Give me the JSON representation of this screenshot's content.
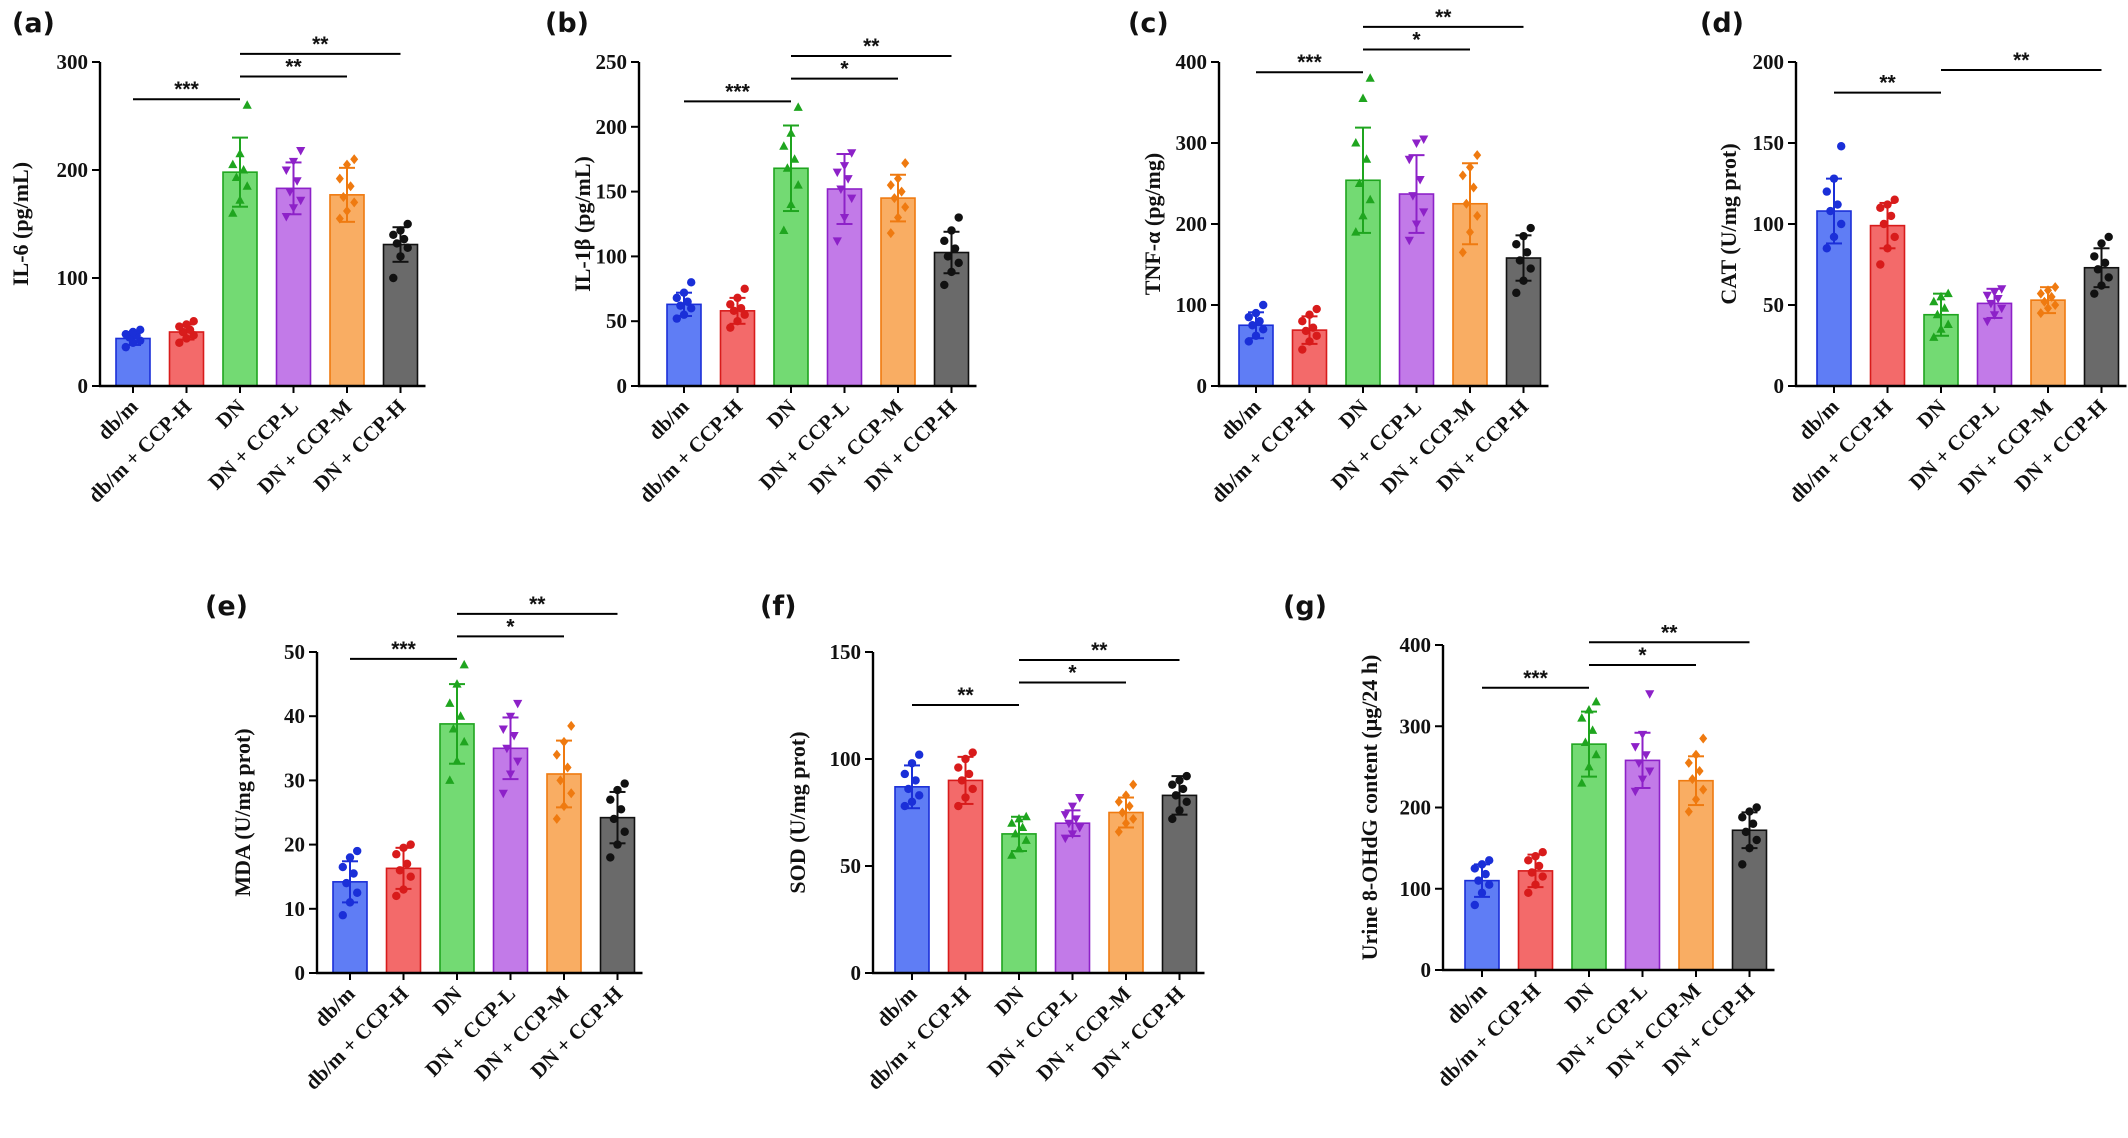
{
  "figure": {
    "colors": {
      "fills": [
        "#5f7df5",
        "#f36a6a",
        "#73da73",
        "#c27ae8",
        "#f9ad63",
        "#6a6a6a"
      ],
      "strokes": [
        "#1a2fd8",
        "#d81b1b",
        "#1fa51f",
        "#8d21c8",
        "#ef7a10",
        "#111111"
      ],
      "axis": "#000000"
    }
  },
  "chart_data": [
    {
      "id": "a",
      "panel_label": "(a)",
      "type": "bar",
      "ylabel": "IL-6 (pg/mL)",
      "ylim": [
        0,
        300
      ],
      "yticks": [
        0,
        100,
        200,
        300
      ],
      "categories": [
        "db/m",
        "db/m + CCP-H",
        "DN",
        "DN + CCP-L",
        "DN + CCP-M",
        "DN + CCP-H"
      ],
      "values": [
        44,
        50,
        198,
        183,
        177,
        131
      ],
      "errors": [
        6,
        7,
        32,
        24,
        25,
        16
      ],
      "points": [
        [
          36,
          40,
          42,
          45,
          47,
          48,
          50,
          52
        ],
        [
          40,
          44,
          47,
          50,
          52,
          55,
          57,
          60
        ],
        [
          160,
          172,
          185,
          193,
          200,
          205,
          215,
          260
        ],
        [
          157,
          165,
          172,
          180,
          190,
          200,
          208,
          218
        ],
        [
          155,
          162,
          170,
          175,
          185,
          192,
          205,
          210
        ],
        [
          100,
          120,
          128,
          132,
          136,
          140,
          144,
          150
        ]
      ],
      "markers": [
        "circle",
        "circle",
        "triangle-up",
        "triangle-down",
        "diamond",
        "circle"
      ],
      "significance": [
        {
          "from": 0,
          "to": 2,
          "label": "***"
        },
        {
          "from": 2,
          "to": 4,
          "label": "**"
        },
        {
          "from": 2,
          "to": 5,
          "label": "**"
        }
      ]
    },
    {
      "id": "b",
      "panel_label": "(b)",
      "type": "bar",
      "ylabel": "IL-1β (pg/mL)",
      "ylim": [
        0,
        250
      ],
      "yticks": [
        0,
        50,
        100,
        150,
        200,
        250
      ],
      "categories": [
        "db/m",
        "db/m + CCP-H",
        "DN",
        "DN + CCP-L",
        "DN + CCP-M",
        "DN + CCP-H"
      ],
      "values": [
        63,
        58,
        168,
        152,
        145,
        103
      ],
      "errors": [
        9,
        10,
        33,
        27,
        18,
        16
      ],
      "points": [
        [
          52,
          55,
          60,
          62,
          65,
          68,
          72,
          80
        ],
        [
          45,
          50,
          55,
          58,
          60,
          63,
          68,
          75
        ],
        [
          120,
          140,
          155,
          168,
          175,
          185,
          195,
          215
        ],
        [
          112,
          130,
          145,
          152,
          160,
          165,
          170,
          180
        ],
        [
          118,
          130,
          138,
          145,
          150,
          155,
          160,
          172
        ],
        [
          78,
          88,
          95,
          100,
          106,
          112,
          120,
          130
        ]
      ],
      "markers": [
        "circle",
        "circle",
        "triangle-up",
        "triangle-down",
        "diamond",
        "circle"
      ],
      "significance": [
        {
          "from": 0,
          "to": 2,
          "label": "***"
        },
        {
          "from": 2,
          "to": 4,
          "label": "*"
        },
        {
          "from": 2,
          "to": 5,
          "label": "**"
        }
      ]
    },
    {
      "id": "c",
      "panel_label": "(c)",
      "type": "bar",
      "ylabel": "TNF-α (pg/mg)",
      "ylim": [
        0,
        400
      ],
      "yticks": [
        0,
        100,
        200,
        300,
        400
      ],
      "categories": [
        "db/m",
        "db/m + CCP-H",
        "DN",
        "DN + CCP-L",
        "DN + CCP-M",
        "DN + CCP-H"
      ],
      "values": [
        75,
        69,
        254,
        237,
        225,
        158
      ],
      "errors": [
        16,
        17,
        65,
        48,
        50,
        28
      ],
      "points": [
        [
          55,
          62,
          70,
          75,
          80,
          85,
          90,
          100
        ],
        [
          45,
          55,
          62,
          68,
          72,
          80,
          88,
          95
        ],
        [
          190,
          210,
          230,
          250,
          280,
          300,
          355,
          380
        ],
        [
          180,
          200,
          215,
          235,
          255,
          280,
          300,
          305
        ],
        [
          165,
          190,
          210,
          225,
          245,
          260,
          270,
          285
        ],
        [
          115,
          130,
          145,
          155,
          165,
          175,
          185,
          195
        ]
      ],
      "markers": [
        "circle",
        "circle",
        "triangle-up",
        "triangle-down",
        "diamond",
        "circle"
      ],
      "significance": [
        {
          "from": 0,
          "to": 2,
          "label": "***"
        },
        {
          "from": 2,
          "to": 4,
          "label": "*"
        },
        {
          "from": 2,
          "to": 5,
          "label": "**"
        }
      ]
    },
    {
      "id": "d",
      "panel_label": "(d)",
      "type": "bar",
      "ylabel": "CAT (U/mg prot)",
      "ylim": [
        0,
        200
      ],
      "yticks": [
        0,
        50,
        100,
        150,
        200
      ],
      "categories": [
        "db/m",
        "db/m + CCP-H",
        "DN",
        "DN + CCP-L",
        "DN + CCP-M",
        "DN + CCP-H"
      ],
      "values": [
        108,
        99,
        44,
        51,
        53,
        73
      ],
      "errors": [
        20,
        14,
        13,
        9,
        8,
        12
      ],
      "points": [
        [
          85,
          92,
          100,
          108,
          112,
          120,
          128,
          148
        ],
        [
          75,
          85,
          92,
          100,
          105,
          110,
          112,
          115
        ],
        [
          30,
          35,
          38,
          44,
          48,
          52,
          55,
          57
        ],
        [
          40,
          44,
          48,
          51,
          54,
          56,
          58,
          60
        ],
        [
          45,
          48,
          50,
          52,
          55,
          57,
          59,
          61
        ],
        [
          57,
          62,
          67,
          72,
          76,
          80,
          88,
          92
        ]
      ],
      "markers": [
        "circle",
        "circle",
        "triangle-up",
        "triangle-down",
        "diamond",
        "circle"
      ],
      "significance": [
        {
          "from": 0,
          "to": 2,
          "label": "**"
        },
        {
          "from": 2,
          "to": 5,
          "label": "**"
        }
      ]
    },
    {
      "id": "e",
      "panel_label": "(e)",
      "type": "bar",
      "ylabel": "MDA (U/mg prot)",
      "ylim": [
        0,
        50
      ],
      "yticks": [
        0,
        10,
        20,
        30,
        40,
        50
      ],
      "categories": [
        "db/m",
        "db/m + CCP-H",
        "DN",
        "DN + CCP-L",
        "DN + CCP-M",
        "DN + CCP-H"
      ],
      "values": [
        14.2,
        16.3,
        38.8,
        35,
        31,
        24.2
      ],
      "errors": [
        3.2,
        3.2,
        6.2,
        4.8,
        5.2,
        4
      ],
      "points": [
        [
          9,
          11,
          12.5,
          14,
          15.5,
          16.5,
          18,
          19
        ],
        [
          12,
          13,
          15,
          16,
          17,
          18.5,
          19.5,
          20
        ],
        [
          30,
          33,
          36,
          38,
          40,
          42,
          45,
          48
        ],
        [
          28,
          31,
          33,
          35,
          37,
          38,
          40,
          42
        ],
        [
          24,
          26,
          28,
          30,
          32,
          34,
          36,
          38.5
        ],
        [
          18,
          20,
          22,
          24,
          25.5,
          27,
          28.5,
          29.5
        ]
      ],
      "markers": [
        "circle",
        "circle",
        "triangle-up",
        "triangle-down",
        "diamond",
        "circle"
      ],
      "significance": [
        {
          "from": 0,
          "to": 2,
          "label": "***"
        },
        {
          "from": 2,
          "to": 4,
          "label": "*"
        },
        {
          "from": 2,
          "to": 5,
          "label": "**"
        }
      ]
    },
    {
      "id": "f",
      "panel_label": "(f)",
      "type": "bar",
      "ylabel": "SOD (U/mg prot)",
      "ylim": [
        0,
        150
      ],
      "yticks": [
        0,
        50,
        100,
        150
      ],
      "categories": [
        "db/m",
        "db/m + CCP-H",
        "DN",
        "DN + CCP-L",
        "DN + CCP-M",
        "DN + CCP-H"
      ],
      "values": [
        87,
        90,
        65,
        70,
        75,
        83
      ],
      "errors": [
        10,
        11,
        8,
        6,
        7,
        9
      ],
      "points": [
        [
          78,
          80,
          83,
          86,
          90,
          93,
          98,
          102
        ],
        [
          78,
          82,
          86,
          90,
          93,
          96,
          100,
          103
        ],
        [
          55,
          58,
          62,
          65,
          68,
          70,
          72,
          73
        ],
        [
          63,
          65,
          68,
          70,
          72,
          74,
          78,
          82
        ],
        [
          66,
          70,
          72,
          75,
          78,
          80,
          83,
          88
        ],
        [
          72,
          76,
          80,
          83,
          86,
          88,
          90,
          92
        ]
      ],
      "markers": [
        "circle",
        "circle",
        "triangle-up",
        "triangle-down",
        "diamond",
        "circle"
      ],
      "significance": [
        {
          "from": 0,
          "to": 2,
          "label": "**"
        },
        {
          "from": 2,
          "to": 4,
          "label": "*"
        },
        {
          "from": 2,
          "to": 5,
          "label": "**"
        }
      ]
    },
    {
      "id": "g",
      "panel_label": "(g)",
      "type": "bar",
      "ylabel": "Urine 8-OHdG content (μg/24 h)",
      "ylim": [
        0,
        400
      ],
      "yticks": [
        0,
        100,
        200,
        300,
        400
      ],
      "categories": [
        "db/m",
        "db/m + CCP-H",
        "DN",
        "DN + CCP-L",
        "DN + CCP-M",
        "DN + CCP-H"
      ],
      "values": [
        110,
        122,
        278,
        258,
        233,
        172
      ],
      "errors": [
        20,
        20,
        40,
        34,
        30,
        22
      ],
      "points": [
        [
          80,
          95,
          105,
          110,
          118,
          125,
          130,
          135
        ],
        [
          95,
          105,
          115,
          120,
          128,
          135,
          140,
          145
        ],
        [
          230,
          250,
          265,
          280,
          295,
          310,
          320,
          330
        ],
        [
          220,
          235,
          245,
          255,
          265,
          275,
          290,
          340
        ],
        [
          195,
          210,
          222,
          235,
          245,
          255,
          265,
          285
        ],
        [
          130,
          150,
          160,
          170,
          180,
          188,
          195,
          200
        ]
      ],
      "markers": [
        "circle",
        "circle",
        "triangle-up",
        "triangle-down",
        "diamond",
        "circle"
      ],
      "significance": [
        {
          "from": 0,
          "to": 2,
          "label": "***"
        },
        {
          "from": 2,
          "to": 4,
          "label": "*"
        },
        {
          "from": 2,
          "to": 5,
          "label": "**"
        }
      ]
    }
  ]
}
